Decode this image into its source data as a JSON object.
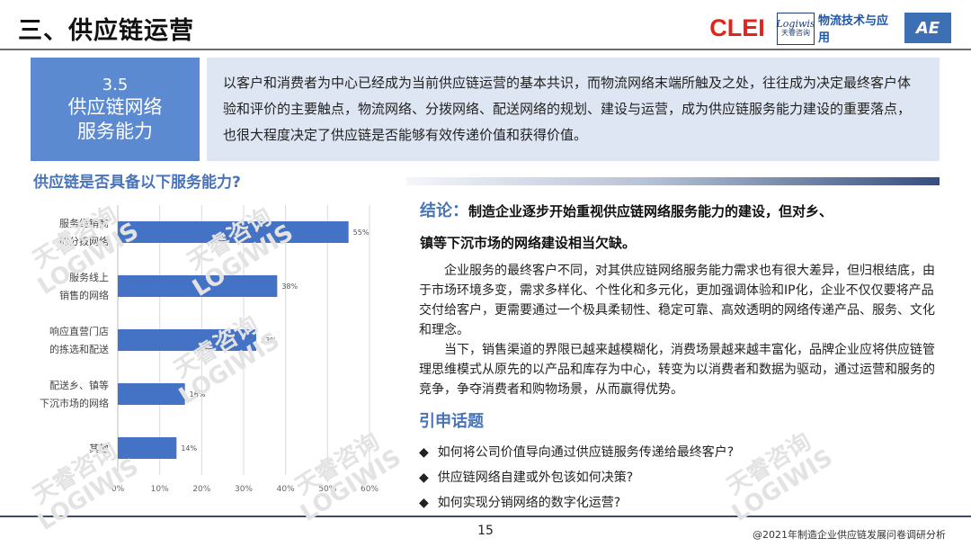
{
  "header": {
    "title": "三、供应链运营",
    "logos": {
      "clei": "CLEI",
      "logiwis_big": "Logiwis",
      "logiwis_small": "天睿咨询",
      "wuliu": "物流技术与应用",
      "ae": "AE"
    }
  },
  "section": {
    "number": "3.5",
    "title_line1": "供应链网络",
    "title_line2": "服务能力"
  },
  "intro": "以客户和消费者为中心已经成为当前供应链运营的基本共识，而物流网络末端所触及之处，往往成为决定最终客户体验和评价的主要触点，物流网络、分拨网络、配送网络的规划、建设与运营，成为供应链服务能力建设的重要落点，也很大程度决定了供应链是否能够有效传递价值和获得价值。",
  "chart_data": {
    "type": "bar",
    "orientation": "horizontal",
    "title": "供应链是否具备以下服务能力?",
    "categories": [
      [
        "服务经销商",
        "的分拨网络"
      ],
      [
        "服务线上",
        "销售的网络"
      ],
      [
        "响应直营门店",
        "的拣选和配送"
      ],
      [
        "配送乡、镇等",
        "下沉市场的网络"
      ],
      [
        "其他"
      ]
    ],
    "values": [
      55,
      38,
      33,
      16,
      14
    ],
    "value_labels": [
      "55%",
      "38%",
      "33%",
      "16%",
      "14%"
    ],
    "xlim": [
      0,
      60
    ],
    "xticks": [
      "0%",
      "10%",
      "20%",
      "30%",
      "40%",
      "50%",
      "60%"
    ],
    "grid": true,
    "bar_color": "#4472c4"
  },
  "watermark": {
    "line1": "天睿咨询",
    "line2": "LOGIWIS"
  },
  "conclusion": {
    "label": "结论：",
    "line1": "制造企业逐步开始重视供应链网络服务能力的建设，但对乡、",
    "line2": "镇等下沉市场的网络建设相当欠缺。"
  },
  "body": {
    "p1": "企业服务的最终客户不同，对其供应链网络服务能力需求也有很大差异，但归根结底，由于市场环境多变，需求多样化、个性化和多元化，更加强调体验和IP化，企业不仅仅要将产品交付给客户，更需要通过一个极具柔韧性、稳定可靠、高效透明的网络传递产品、服务、文化和理念。",
    "p2": "当下，销售渠道的界限已越来越模糊化，消费场景越来越丰富化，品牌企业应将供应链管理思维模式从原先的以产品和库存为中心，转变为以消费者和数据为驱动，通过运营和服务的竞争，争夺消费者和购物场景，从而赢得优势。"
  },
  "topics": {
    "title": "引申话题",
    "bullet": "◆",
    "items": [
      "如何将公司价值导向通过供应链服务传递给最终客户?",
      "供应链网络自建或外包该如何决策?",
      "如何实现分销网络的数字化运营?"
    ]
  },
  "footer": {
    "page_number": "15",
    "source": "@2021年制造企业供应链发展问卷调研分析"
  }
}
